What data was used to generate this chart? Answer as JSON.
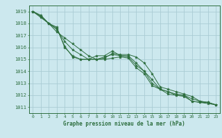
{
  "background_color": "#cce8ee",
  "grid_color": "#aaccd4",
  "line_color": "#2d6e3e",
  "marker_color": "#2d6e3e",
  "xlabel": "Graphe pression niveau de la mer (hPa)",
  "xlim": [
    -0.5,
    23.5
  ],
  "ylim": [
    1010.5,
    1019.5
  ],
  "yticks": [
    1011,
    1012,
    1013,
    1014,
    1015,
    1016,
    1017,
    1018,
    1019
  ],
  "xticks": [
    0,
    1,
    2,
    3,
    4,
    5,
    6,
    7,
    8,
    9,
    10,
    11,
    12,
    13,
    14,
    15,
    16,
    17,
    18,
    19,
    20,
    21,
    22,
    23
  ],
  "series": [
    [
      1019.0,
      1018.7,
      1018.0,
      1017.7,
      1016.0,
      1015.3,
      1015.0,
      1015.0,
      1015.3,
      1015.3,
      1015.7,
      1015.3,
      1015.3,
      1014.7,
      1014.0,
      1013.3,
      1012.5,
      1012.3,
      1012.0,
      1012.0,
      1011.5,
      1011.4,
      1011.4,
      1011.2
    ],
    [
      1019.0,
      1018.6,
      1018.0,
      1017.5,
      1016.5,
      1015.8,
      1015.4,
      1015.0,
      1015.0,
      1015.2,
      1015.4,
      1015.3,
      1015.2,
      1014.5,
      1014.0,
      1013.0,
      1012.5,
      1012.1,
      1012.0,
      1011.9,
      1011.5,
      1011.4,
      1011.3,
      1011.2
    ],
    [
      1019.0,
      1018.5,
      1018.0,
      1017.3,
      1016.8,
      1016.3,
      1015.8,
      1015.3,
      1015.0,
      1015.0,
      1015.1,
      1015.2,
      1015.1,
      1014.3,
      1013.8,
      1012.8,
      1012.5,
      1012.3,
      1012.1,
      1012.0,
      1011.7,
      1011.5,
      1011.4,
      1011.2
    ],
    [
      1019.0,
      1018.6,
      1018.0,
      1017.6,
      1016.1,
      1015.2,
      1015.0,
      1015.0,
      1015.0,
      1015.1,
      1015.5,
      1015.4,
      1015.4,
      1015.2,
      1014.7,
      1013.8,
      1012.7,
      1012.5,
      1012.3,
      1012.1,
      1011.9,
      1011.5,
      1011.4,
      1011.2
    ]
  ]
}
